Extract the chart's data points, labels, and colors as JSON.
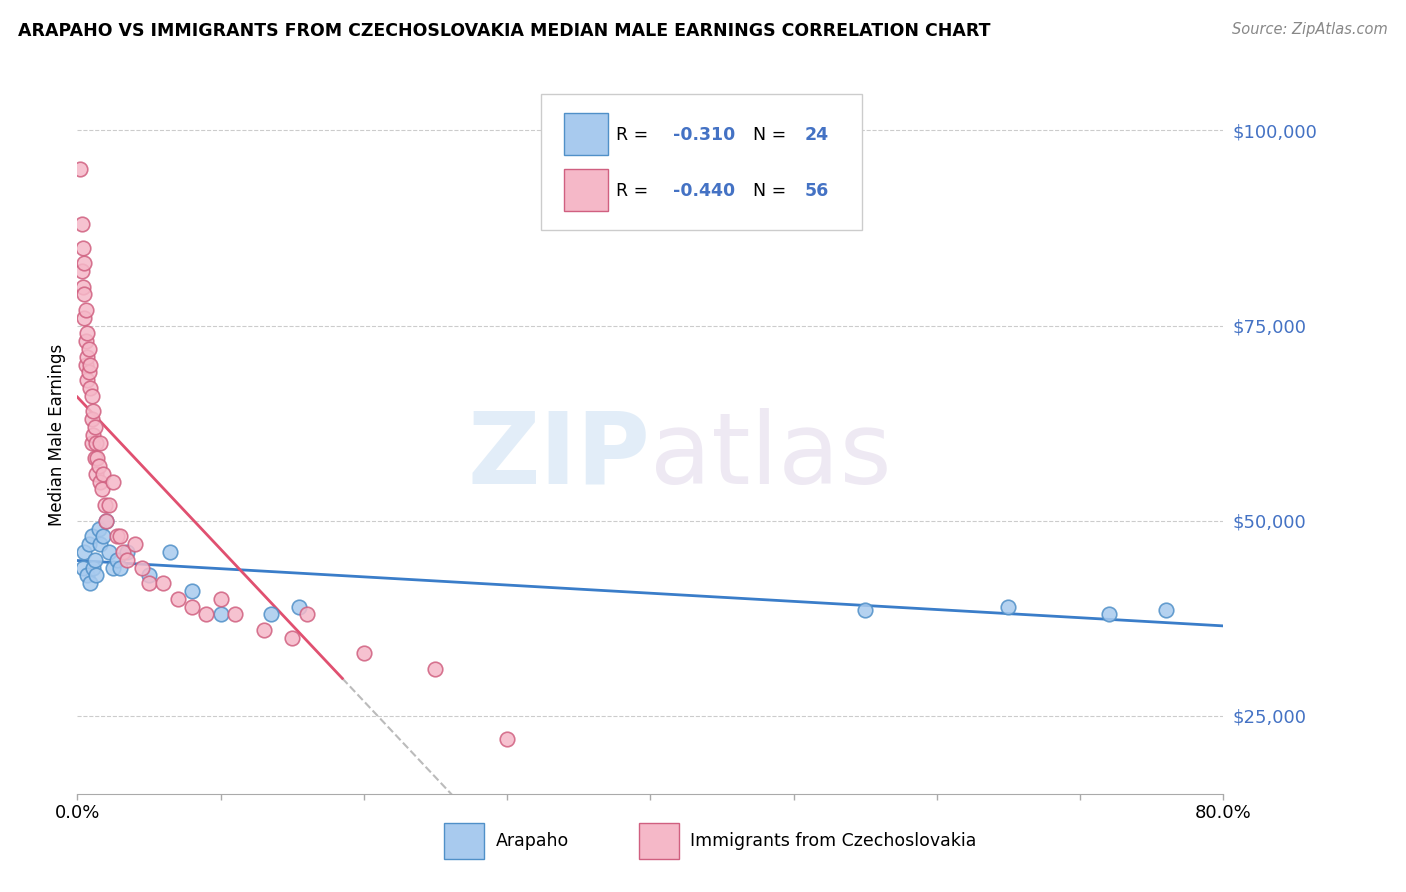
{
  "title": "ARAPAHO VS IMMIGRANTS FROM CZECHOSLOVAKIA MEDIAN MALE EARNINGS CORRELATION CHART",
  "source": "Source: ZipAtlas.com",
  "ylabel": "Median Male Earnings",
  "yticks": [
    25000,
    50000,
    75000,
    100000
  ],
  "ytick_labels": [
    "$25,000",
    "$50,000",
    "$75,000",
    "$100,000"
  ],
  "xlim": [
    0.0,
    0.8
  ],
  "ylim": [
    15000,
    107000
  ],
  "color_blue": "#A8CAEE",
  "color_pink": "#F5B8C8",
  "color_blue_line": "#3A7DC9",
  "color_pink_line": "#E05070",
  "color_blue_edge": "#5090C8",
  "color_pink_edge": "#D06080",
  "color_blue_text": "#4472C4",
  "arapaho_x": [
    0.004,
    0.005,
    0.007,
    0.008,
    0.009,
    0.01,
    0.011,
    0.012,
    0.013,
    0.015,
    0.016,
    0.018,
    0.02,
    0.022,
    0.025,
    0.028,
    0.03,
    0.035,
    0.05,
    0.065,
    0.08,
    0.1,
    0.135,
    0.155,
    0.55,
    0.65,
    0.72,
    0.76
  ],
  "arapaho_y": [
    44000,
    46000,
    43000,
    47000,
    42000,
    48000,
    44000,
    45000,
    43000,
    49000,
    47000,
    48000,
    50000,
    46000,
    44000,
    45000,
    44000,
    46000,
    43000,
    46000,
    41000,
    38000,
    38000,
    39000,
    38500,
    39000,
    38000,
    38500
  ],
  "czech_x": [
    0.002,
    0.003,
    0.003,
    0.004,
    0.004,
    0.005,
    0.005,
    0.005,
    0.006,
    0.006,
    0.006,
    0.007,
    0.007,
    0.007,
    0.008,
    0.008,
    0.009,
    0.009,
    0.01,
    0.01,
    0.01,
    0.011,
    0.011,
    0.012,
    0.012,
    0.013,
    0.013,
    0.014,
    0.015,
    0.016,
    0.016,
    0.017,
    0.018,
    0.019,
    0.02,
    0.022,
    0.025,
    0.028,
    0.03,
    0.032,
    0.035,
    0.04,
    0.045,
    0.05,
    0.06,
    0.07,
    0.08,
    0.09,
    0.1,
    0.11,
    0.13,
    0.15,
    0.16,
    0.2,
    0.25,
    0.3
  ],
  "czech_y": [
    95000,
    88000,
    82000,
    85000,
    80000,
    83000,
    79000,
    76000,
    77000,
    73000,
    70000,
    74000,
    71000,
    68000,
    72000,
    69000,
    70000,
    67000,
    66000,
    63000,
    60000,
    64000,
    61000,
    62000,
    58000,
    60000,
    56000,
    58000,
    57000,
    60000,
    55000,
    54000,
    56000,
    52000,
    50000,
    52000,
    55000,
    48000,
    48000,
    46000,
    45000,
    47000,
    44000,
    42000,
    42000,
    40000,
    39000,
    38000,
    40000,
    38000,
    36000,
    35000,
    38000,
    33000,
    31000,
    22000
  ],
  "blue_line_start_x": 0.0,
  "blue_line_end_x": 0.8,
  "pink_line_start_x": 0.0,
  "pink_line_solid_end_x": 0.185,
  "pink_line_dashed_end_x": 0.5
}
